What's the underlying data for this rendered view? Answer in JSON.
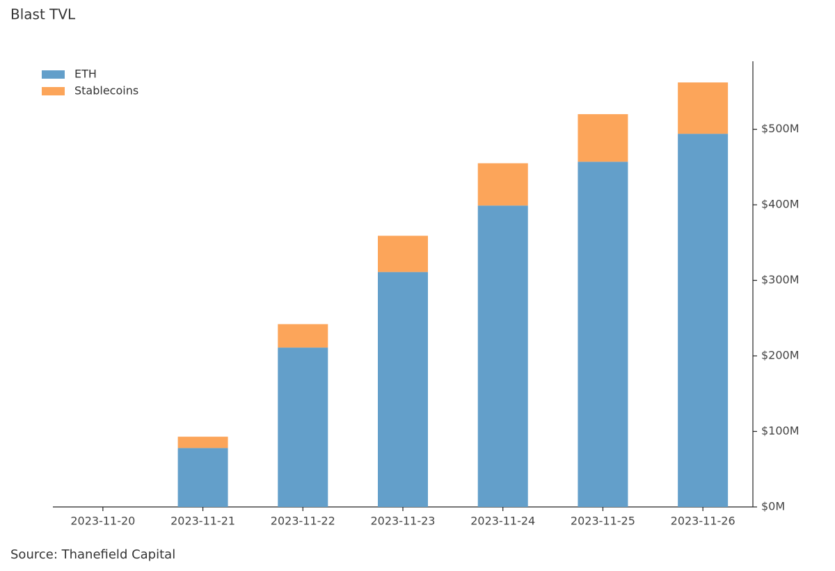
{
  "chart_data": {
    "type": "bar",
    "stacked": true,
    "title": "Blast TVL",
    "source": "Source: Thanefield Capital",
    "categories": [
      "2023-11-20",
      "2023-11-21",
      "2023-11-22",
      "2023-11-23",
      "2023-11-24",
      "2023-11-25",
      "2023-11-26"
    ],
    "series": [
      {
        "name": "ETH",
        "color": "#639fca",
        "values": [
          0,
          78,
          211,
          311,
          399,
          457,
          494
        ]
      },
      {
        "name": "Stablecoins",
        "color": "#fca55a",
        "values": [
          0,
          15,
          31,
          48,
          56,
          63,
          68
        ]
      }
    ],
    "ylim": [
      0,
      590
    ],
    "yticks": [
      {
        "value": 0,
        "label": "$0M"
      },
      {
        "value": 100,
        "label": "$100M"
      },
      {
        "value": 200,
        "label": "$200M"
      },
      {
        "value": 300,
        "label": "$300M"
      },
      {
        "value": 400,
        "label": "$400M"
      },
      {
        "value": 500,
        "label": "$500M"
      }
    ],
    "y_axis_side": "right",
    "legend": "upper left",
    "grid": false
  }
}
